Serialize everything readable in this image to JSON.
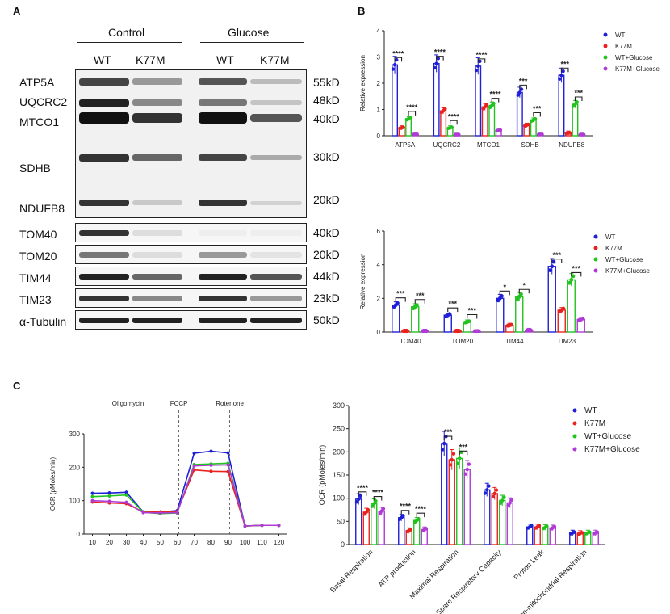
{
  "panels": {
    "a": "A",
    "b": "B",
    "c": "C"
  },
  "blot": {
    "groups": [
      "Control",
      "Glucose"
    ],
    "lanes": [
      "WT",
      "K77M",
      "WT",
      "K77M"
    ],
    "main_proteins": [
      "ATP5A",
      "UQCRC2",
      "MTCO1",
      "SDHB",
      "NDUFB8"
    ],
    "main_kd": [
      "55kD",
      "48kD",
      "40kD",
      "30kD",
      "20kD"
    ],
    "small": [
      {
        "protein": "TOM40",
        "kd": "40kD"
      },
      {
        "protein": "TOM20",
        "kd": "20kD"
      },
      {
        "protein": "TIM44",
        "kd": "44kD"
      },
      {
        "protein": "TIM23",
        "kd": "23kD"
      },
      {
        "protein": "α-Tubulin",
        "kd": "50kD"
      }
    ]
  },
  "colors": {
    "WT": "#1f1fd6",
    "K77M": "#e8231f",
    "WT+Glucose": "#22c21f",
    "K77M+Glucose": "#b03ad6"
  },
  "chart_data": [
    {
      "type": "bar",
      "ylabel": "Relative expression",
      "ylim": [
        0,
        4
      ],
      "yticks": [
        0,
        1,
        2,
        3,
        4
      ],
      "categories": [
        "ATP5A",
        "UQCRC2",
        "MTCO1",
        "SDHB",
        "NDUFB8"
      ],
      "series": [
        {
          "name": "WT",
          "values": [
            2.7,
            2.75,
            2.65,
            1.65,
            2.3
          ]
        },
        {
          "name": "K77M",
          "values": [
            0.3,
            0.95,
            1.1,
            0.4,
            0.1
          ]
        },
        {
          "name": "WT+Glucose",
          "values": [
            0.65,
            0.3,
            1.15,
            0.6,
            1.2
          ]
        },
        {
          "name": "K77M+Glucose",
          "values": [
            0.05,
            0.02,
            0.2,
            0.05,
            0.02
          ]
        }
      ],
      "significance": [
        {
          "category": 0,
          "pair": [
            0,
            1
          ],
          "label": "****"
        },
        {
          "category": 0,
          "pair": [
            2,
            3
          ],
          "label": "****"
        },
        {
          "category": 1,
          "pair": [
            0,
            1
          ],
          "label": "****"
        },
        {
          "category": 1,
          "pair": [
            2,
            3
          ],
          "label": "****"
        },
        {
          "category": 2,
          "pair": [
            0,
            1
          ],
          "label": "****"
        },
        {
          "category": 2,
          "pair": [
            2,
            3
          ],
          "label": "****"
        },
        {
          "category": 3,
          "pair": [
            0,
            1
          ],
          "label": "***"
        },
        {
          "category": 3,
          "pair": [
            2,
            3
          ],
          "label": "***"
        },
        {
          "category": 4,
          "pair": [
            0,
            1
          ],
          "label": "***"
        },
        {
          "category": 4,
          "pair": [
            2,
            3
          ],
          "label": "***"
        }
      ],
      "legend": [
        "WT",
        "K77M",
        "WT+Glucose",
        "K77M+Glucose"
      ]
    },
    {
      "type": "bar",
      "ylabel": "Relative expression",
      "ylim": [
        0,
        6
      ],
      "yticks": [
        0,
        2,
        4,
        6
      ],
      "categories": [
        "TOM40",
        "TOM20",
        "TIM44",
        "TIM23"
      ],
      "series": [
        {
          "name": "WT",
          "values": [
            1.6,
            1.0,
            2.0,
            3.9
          ]
        },
        {
          "name": "K77M",
          "values": [
            0.05,
            0.05,
            0.4,
            1.3
          ]
        },
        {
          "name": "WT+Glucose",
          "values": [
            1.5,
            0.6,
            2.1,
            3.1
          ]
        },
        {
          "name": "K77M+Glucose",
          "values": [
            0.05,
            0.02,
            0.1,
            0.75
          ]
        }
      ],
      "significance": [
        {
          "category": 0,
          "pair": [
            0,
            1
          ],
          "label": "***"
        },
        {
          "category": 0,
          "pair": [
            2,
            3
          ],
          "label": "***"
        },
        {
          "category": 1,
          "pair": [
            0,
            1
          ],
          "label": "***"
        },
        {
          "category": 1,
          "pair": [
            2,
            3
          ],
          "label": "***"
        },
        {
          "category": 2,
          "pair": [
            0,
            1
          ],
          "label": "*"
        },
        {
          "category": 2,
          "pair": [
            2,
            3
          ],
          "label": "*"
        },
        {
          "category": 3,
          "pair": [
            0,
            1
          ],
          "label": "***"
        },
        {
          "category": 3,
          "pair": [
            2,
            3
          ],
          "label": "***"
        }
      ],
      "legend": [
        "WT",
        "K77M",
        "WT+Glucose",
        "K77M+Glucose"
      ]
    },
    {
      "type": "line",
      "ylabel": "OCR (pMoles/min)",
      "ylim": [
        0,
        300
      ],
      "yticks": [
        0,
        100,
        200,
        300
      ],
      "xticks": [
        10,
        20,
        30,
        40,
        50,
        60,
        70,
        80,
        90,
        100,
        110,
        120
      ],
      "injections": [
        {
          "x": 31,
          "label": "Oligomycin"
        },
        {
          "x": 61,
          "label": "FCCP"
        },
        {
          "x": 91,
          "label": "Rotenone"
        }
      ],
      "x": [
        10,
        20,
        30,
        40,
        50,
        60,
        70,
        80,
        90,
        100,
        110,
        120
      ],
      "series": [
        {
          "name": "WT",
          "values": [
            122,
            123,
            125,
            66,
            66,
            70,
            242,
            248,
            243,
            24,
            26,
            26
          ]
        },
        {
          "name": "K77M",
          "values": [
            96,
            93,
            91,
            66,
            66,
            67,
            192,
            188,
            187,
            24,
            26,
            26
          ]
        },
        {
          "name": "WT+Glucose",
          "values": [
            112,
            114,
            117,
            65,
            61,
            63,
            208,
            210,
            212,
            24,
            26,
            26
          ]
        },
        {
          "name": "K77M+Glucose",
          "values": [
            100,
            98,
            95,
            64,
            63,
            64,
            204,
            206,
            207,
            24,
            26,
            26
          ]
        }
      ]
    },
    {
      "type": "bar",
      "ylabel": "OCR (pMoles/min)",
      "ylim": [
        0,
        300
      ],
      "yticks": [
        0,
        50,
        100,
        150,
        200,
        250,
        300
      ],
      "categories": [
        "Basal Respiration",
        "ATP production",
        "Maximal Respiration",
        "Spare Respiratory Capacity",
        "Proton Leak",
        "Non-mitochondrial Respiration"
      ],
      "series": [
        {
          "name": "WT",
          "values": [
            98,
            58,
            218,
            118,
            38,
            25
          ]
        },
        {
          "name": "K77M",
          "values": [
            70,
            30,
            183,
            110,
            38,
            24
          ]
        },
        {
          "name": "WT+Glucose",
          "values": [
            88,
            52,
            186,
            95,
            37,
            25
          ]
        },
        {
          "name": "K77M+Glucose",
          "values": [
            72,
            32,
            162,
            90,
            36,
            25
          ]
        }
      ],
      "significance": [
        {
          "category": 0,
          "pair": [
            0,
            1
          ],
          "label": "****"
        },
        {
          "category": 0,
          "pair": [
            2,
            3
          ],
          "label": "****"
        },
        {
          "category": 1,
          "pair": [
            0,
            1
          ],
          "label": "****"
        },
        {
          "category": 1,
          "pair": [
            2,
            3
          ],
          "label": "****"
        },
        {
          "category": 2,
          "pair": [
            0,
            1
          ],
          "label": "***"
        },
        {
          "category": 2,
          "pair": [
            2,
            3
          ],
          "label": "***"
        }
      ],
      "legend": [
        "WT",
        "K77M",
        "WT+Glucose",
        "K77M+Glucose"
      ]
    }
  ]
}
